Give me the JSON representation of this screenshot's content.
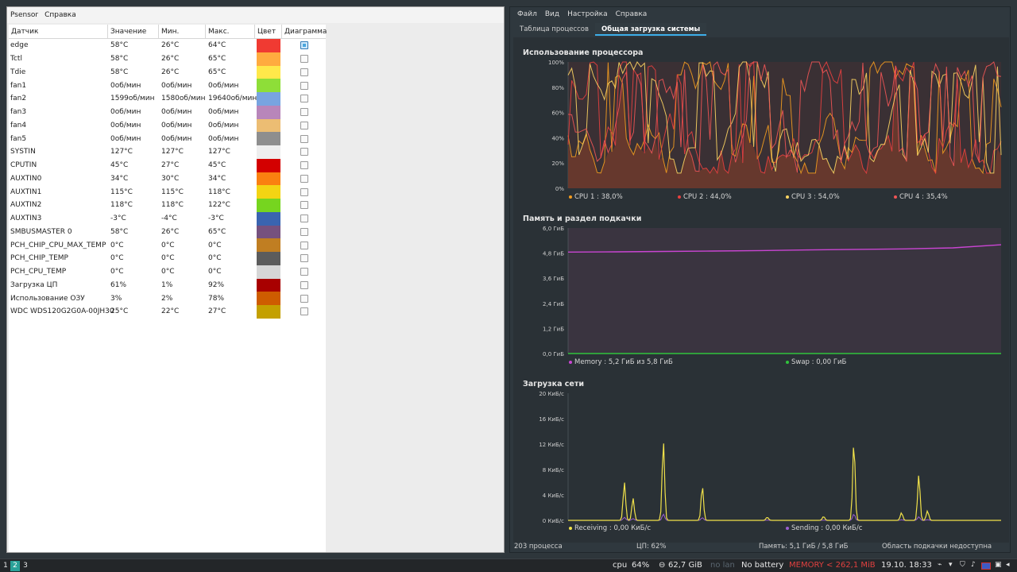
{
  "psensor": {
    "menu": [
      "Psensor",
      "Справка"
    ],
    "headers": [
      "Датчик",
      "Значение",
      "Мин.",
      "Макс.",
      "Цвет",
      "Диаграмма"
    ],
    "rows": [
      {
        "name": "edge",
        "value": "58°C",
        "min": "26°C",
        "max": "64°C",
        "color": "#f03a32",
        "checked": true
      },
      {
        "name": "Tctl",
        "value": "58°C",
        "min": "26°C",
        "max": "65°C",
        "color": "#ffab3f",
        "checked": false
      },
      {
        "name": "Tdie",
        "value": "58°C",
        "min": "26°C",
        "max": "65°C",
        "color": "#ffe84a",
        "checked": false
      },
      {
        "name": "fan1",
        "value": "0об/мин",
        "min": "0об/мин",
        "max": "0об/мин",
        "color": "#8ede38",
        "checked": false
      },
      {
        "name": "fan2",
        "value": "1599об/мин",
        "min": "1580об/мин",
        "max": "19640об/мин",
        "color": "#78a4e0",
        "checked": false
      },
      {
        "name": "fan3",
        "value": "0об/мин",
        "min": "0об/мин",
        "max": "0об/мин",
        "color": "#b886ba",
        "checked": false
      },
      {
        "name": "fan4",
        "value": "0об/мин",
        "min": "0об/мин",
        "max": "0об/мин",
        "color": "#ecbd73",
        "checked": false
      },
      {
        "name": "fan5",
        "value": "0об/мин",
        "min": "0об/мин",
        "max": "0об/мин",
        "color": "#8e8e8e",
        "checked": false
      },
      {
        "name": "SYSTIN",
        "value": "127°C",
        "min": "127°C",
        "max": "127°C",
        "color": "#eeeeee",
        "checked": false
      },
      {
        "name": "CPUTIN",
        "value": "45°C",
        "min": "27°C",
        "max": "45°C",
        "color": "#d30000",
        "checked": false
      },
      {
        "name": "AUXTIN0",
        "value": "34°C",
        "min": "30°C",
        "max": "34°C",
        "color": "#fa8010",
        "checked": false
      },
      {
        "name": "AUXTIN1",
        "value": "115°C",
        "min": "115°C",
        "max": "118°C",
        "color": "#f3d413",
        "checked": false
      },
      {
        "name": "AUXTIN2",
        "value": "118°C",
        "min": "118°C",
        "max": "122°C",
        "color": "#76d51f",
        "checked": false
      },
      {
        "name": "AUXTIN3",
        "value": "-3°C",
        "min": "-4°C",
        "max": "-3°C",
        "color": "#3a64b0",
        "checked": false
      },
      {
        "name": "SMBUSMASTER 0",
        "value": "58°C",
        "min": "26°C",
        "max": "65°C",
        "color": "#76517e",
        "checked": false
      },
      {
        "name": "PCH_CHIP_CPU_MAX_TEMP",
        "value": "0°C",
        "min": "0°C",
        "max": "0°C",
        "color": "#c07e22",
        "checked": false
      },
      {
        "name": "PCH_CHIP_TEMP",
        "value": "0°C",
        "min": "0°C",
        "max": "0°C",
        "color": "#5c5c5c",
        "checked": false
      },
      {
        "name": "PCH_CPU_TEMP",
        "value": "0°C",
        "min": "0°C",
        "max": "0°C",
        "color": "#d6d6d6",
        "checked": false
      },
      {
        "name": "Загрузка ЦП",
        "value": "61%",
        "min": "1%",
        "max": "92%",
        "color": "#a80000",
        "checked": false
      },
      {
        "name": "Использование ОЗУ",
        "value": "3%",
        "min": "2%",
        "max": "78%",
        "color": "#ce5c00",
        "checked": false
      },
      {
        "name": "WDC WDS120G2G0A-00JH30",
        "value": "25°C",
        "min": "22°C",
        "max": "27°C",
        "color": "#c4a000",
        "checked": false
      }
    ]
  },
  "monitor": {
    "menu": [
      "Файл",
      "Вид",
      "Настройка",
      "Справка"
    ],
    "tabs": [
      "Таблица процессов",
      "Общая загрузка системы"
    ],
    "active_tab": 1,
    "status": {
      "processes": "203 процесса",
      "cpu": "ЦП: 62%",
      "memory": "Память: 5,1 ГиБ / 5,8 ГиБ",
      "swap": "Область подкачки недоступна"
    }
  },
  "chart_data": [
    {
      "type": "line",
      "title": "Использование процессора",
      "yticks": [
        "100%",
        "80%",
        "60%",
        "40%",
        "20%",
        "0%"
      ],
      "ylim": [
        0,
        100
      ],
      "series": [
        {
          "name": "CPU 1 : 38,0%",
          "color": "#f39c1f"
        },
        {
          "name": "CPU 2 : 44,0%",
          "color": "#e8403f"
        },
        {
          "name": "CPU 3 : 54,0%",
          "color": "#fdd562"
        },
        {
          "name": "CPU 4 : 35,4%",
          "color": "#f05555"
        }
      ]
    },
    {
      "type": "line",
      "title": "Память и раздел подкачки",
      "yticks": [
        "6,0 ГиБ",
        "4,8 ГиБ",
        "3,6 ГиБ",
        "2,4 ГиБ",
        "1,2 ГиБ",
        "0,0 ГиБ"
      ],
      "ylim": [
        0,
        6
      ],
      "series": [
        {
          "name": "Memory : 5,2 ГиБ из 5,8 ГиБ",
          "color": "#c945d2",
          "values": [
            4.85,
            4.86,
            4.88,
            4.9,
            4.92,
            4.95,
            4.98,
            5.0,
            5.05,
            5.2
          ]
        },
        {
          "name": "Swap : 0,00 ГиБ",
          "color": "#30c33c",
          "values": [
            0,
            0,
            0,
            0,
            0,
            0,
            0,
            0,
            0,
            0
          ]
        }
      ]
    },
    {
      "type": "line",
      "title": "Загрузка сети",
      "yticks": [
        "20 КиБ/с",
        "16 КиБ/с",
        "12 КиБ/с",
        "8 КиБ/с",
        "4 КиБ/с",
        "0 КиБ/с"
      ],
      "ylim": [
        0,
        20
      ],
      "series": [
        {
          "name": "Receiving : 0,00 КиБ/с",
          "color": "#f0e14a"
        },
        {
          "name": "Sending : 0,00 КиБ/с",
          "color": "#9b5fd0"
        }
      ]
    }
  ],
  "taskbar": {
    "workspaces": [
      "1",
      "2",
      "3"
    ],
    "active_workspace": 1,
    "cpu_label": "cpu",
    "cpu_value": "64%",
    "disk": "62,7 GiB",
    "lan": "no lan",
    "battery": "No battery",
    "memory_warning": "MEMORY < 262,1 MiB",
    "datetime": "19.10. 18:33"
  }
}
